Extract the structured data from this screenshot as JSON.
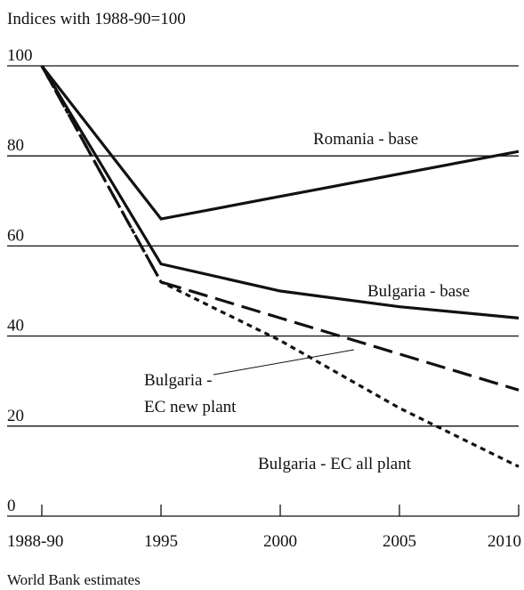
{
  "chart_data": {
    "type": "line",
    "title": "Indices with 1988-90=100",
    "source": "World Bank estimates",
    "categories": [
      "1988-90",
      "1995",
      "2000",
      "2005",
      "2010"
    ],
    "series": [
      {
        "name": "Romania - base",
        "color": "#111111",
        "style": "solid",
        "values": [
          100,
          66,
          71,
          76,
          81
        ]
      },
      {
        "name": "Bulgaria - base",
        "color": "#111111",
        "style": "solid",
        "values": [
          100,
          56,
          50,
          46.5,
          44
        ]
      },
      {
        "name": "Bulgaria - EC new plant",
        "color": "#111111",
        "style": "dashed",
        "values": [
          100,
          52,
          44,
          36,
          28
        ]
      },
      {
        "name": "Bulgaria - EC all plant",
        "color": "#111111",
        "style": "dotted",
        "values": [
          100,
          52,
          39,
          24,
          11
        ]
      }
    ],
    "annotations": [
      "Romania - base",
      "Bulgaria - base",
      "Bulgaria -",
      "EC new plant",
      "Bulgaria - EC all plant"
    ],
    "ylim": [
      0,
      100
    ],
    "yticks": [
      0,
      20,
      40,
      60,
      80,
      100
    ],
    "grid": true
  }
}
